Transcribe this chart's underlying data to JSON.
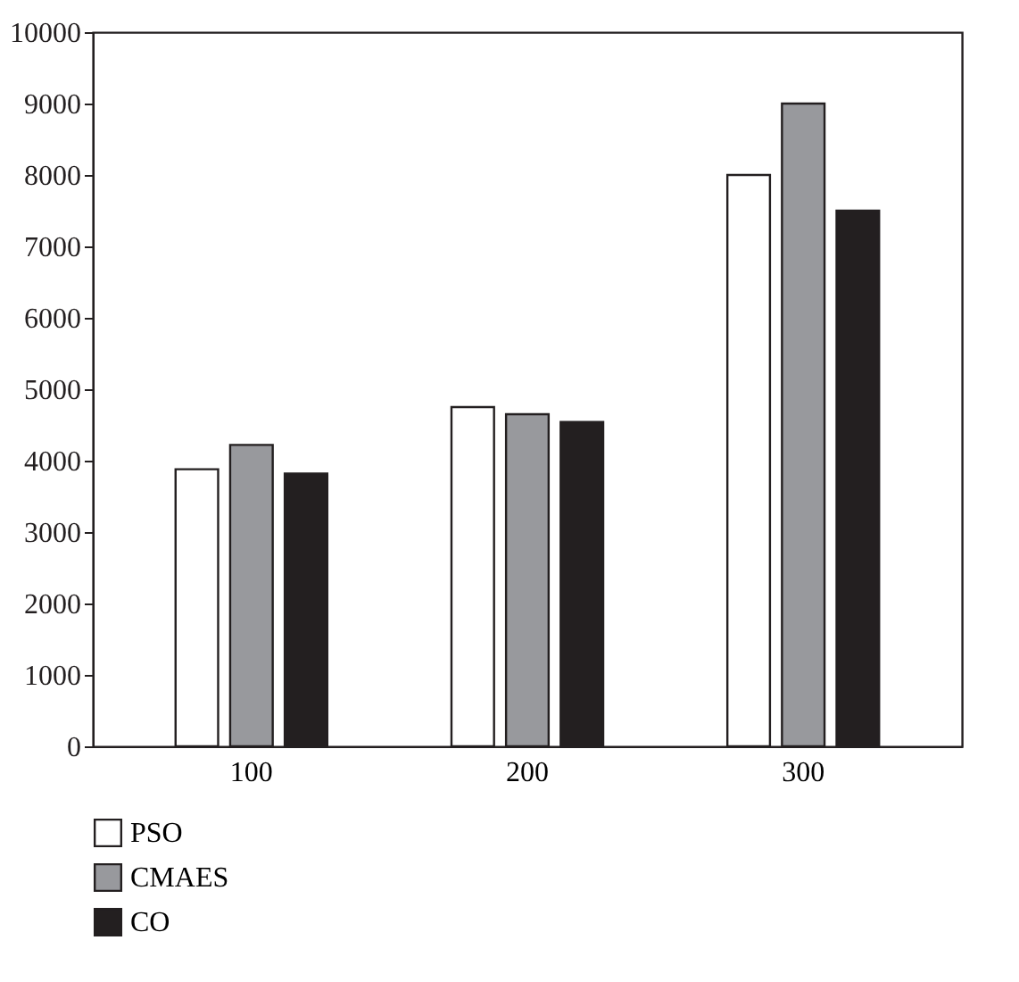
{
  "chart_data": {
    "type": "bar",
    "categories": [
      "100",
      "200",
      "300"
    ],
    "series": [
      {
        "name": "PSO",
        "color": "#ffffff",
        "values": [
          3880,
          4750,
          8000
        ]
      },
      {
        "name": "CMAES",
        "color": "#98999d",
        "values": [
          4220,
          4650,
          9000
        ]
      },
      {
        "name": "CO",
        "color": "#231f20",
        "values": [
          3820,
          4540,
          7500
        ]
      }
    ],
    "ylim": [
      0,
      10000
    ],
    "yticks": [
      0,
      1000,
      2000,
      3000,
      4000,
      5000,
      6000,
      7000,
      8000,
      9000,
      10000
    ],
    "grid": false,
    "legend": "bottom"
  }
}
